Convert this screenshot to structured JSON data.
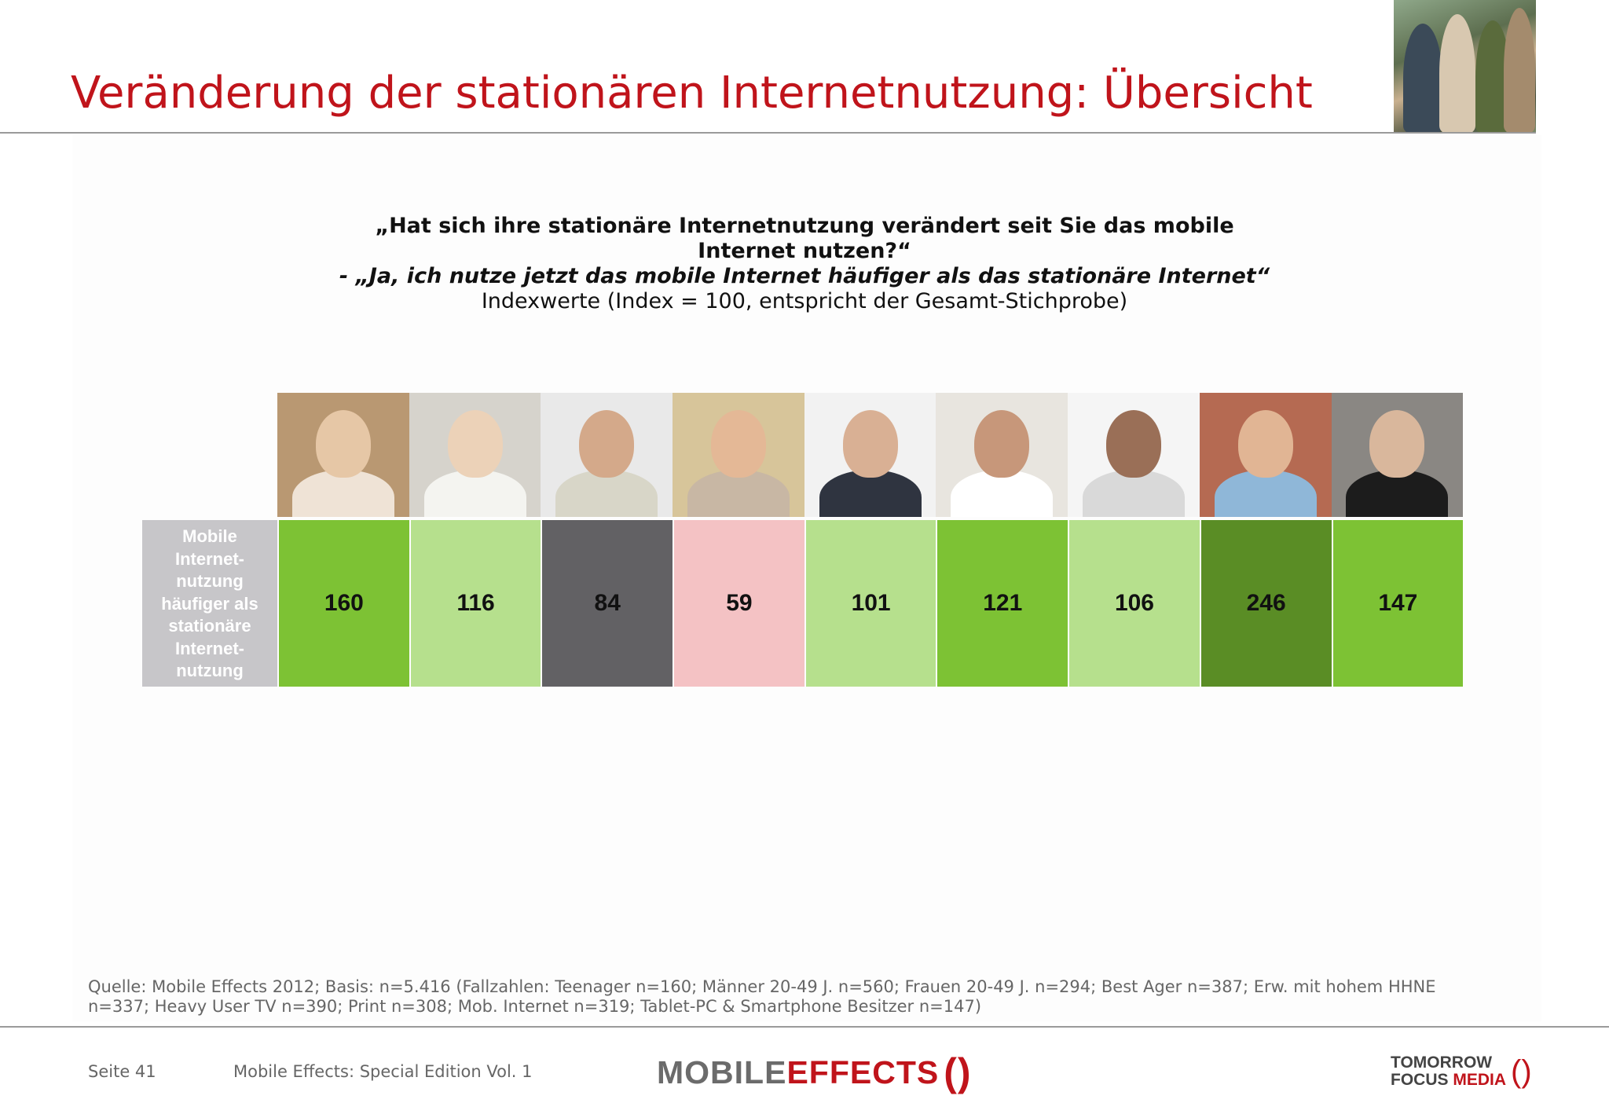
{
  "title": "Veränderung der stationären Internetnutzung: Übersicht",
  "question": {
    "line1": "„Hat sich ihre stationäre Internetnutzung verändert seit Sie das mobile Internet nutzen?“",
    "line2": "- „Ja, ich nutze jetzt das mobile Internet häufiger als das stationäre Internet“",
    "line3": "Indexwerte (Index = 100, entspricht der Gesamt-Stichprobe)"
  },
  "row_label": [
    "Mobile",
    "Internet-",
    "nutzung",
    "häufiger als",
    "stationäre",
    "Internet-",
    "nutzung"
  ],
  "chart_data": {
    "type": "table",
    "row": "Mobile Internet-nutzung häufiger als stationäre Internet-nutzung",
    "values": [
      160,
      116,
      84,
      59,
      101,
      121,
      106,
      246,
      147
    ],
    "cell_colors": [
      "#7dc234",
      "#b6e08d",
      "#626164",
      "#f4c2c4",
      "#b6e08d",
      "#7dc234",
      "#b6e08d",
      "#5a8d25",
      "#7dc234"
    ]
  },
  "cells": [
    {
      "value": "160",
      "color": "#7dc234"
    },
    {
      "value": "116",
      "color": "#b6e08d"
    },
    {
      "value": "84",
      "color": "#626164"
    },
    {
      "value": "59",
      "color": "#f4c2c4"
    },
    {
      "value": "101",
      "color": "#b6e08d"
    },
    {
      "value": "121",
      "color": "#7dc234"
    },
    {
      "value": "106",
      "color": "#b6e08d"
    },
    {
      "value": "246",
      "color": "#5a8d25"
    },
    {
      "value": "147",
      "color": "#7dc234"
    }
  ],
  "photos": [
    {
      "icon": "woman-smartphone-photo",
      "bg": "#b99872",
      "head": "#e6c7a6",
      "body": "#efe3d6"
    },
    {
      "icon": "blonde-woman-phone-photo",
      "bg": "#d6d3cc",
      "head": "#ecd2b8",
      "body": "#f4f4f0"
    },
    {
      "icon": "man-calling-photo",
      "bg": "#e9e9e9",
      "head": "#d4a98a",
      "body": "#d8d6c8"
    },
    {
      "icon": "senior-couple-photo",
      "bg": "#d7c59a",
      "head": "#e4b896",
      "body": "#c8b7a4"
    },
    {
      "icon": "businessman-calling-photo",
      "bg": "#f2f2f2",
      "head": "#d9b094",
      "body": "#2f3440"
    },
    {
      "icon": "teenager-tv-photo",
      "bg": "#e8e5df",
      "head": "#c7977a",
      "body": "#ffffff"
    },
    {
      "icon": "man-newspaper-photo",
      "bg": "#f5f5f5",
      "head": "#9a6f57",
      "body": "#d9d9d9"
    },
    {
      "icon": "man-tablet-photo",
      "bg": "#b56a52",
      "head": "#e1b594",
      "body": "#8fb7d8"
    },
    {
      "icon": "man-black-sweater-photo",
      "bg": "#8a8783",
      "head": "#d9b79c",
      "body": "#1c1c1c"
    }
  ],
  "source": "Quelle: Mobile Effects 2012; Basis: n=5.416 (Fallzahlen: Teenager n=160; Männer 20-49 J. n=560; Frauen 20-49 J. n=294; Best Ager n=387; Erw. mit hohem HHNE n=337; Heavy User TV n=390; Print n=308; Mob. Internet n=319; Tablet-PC & Smartphone Besitzer n=147)",
  "footer": {
    "page": "Seite 41",
    "doc_title": "Mobile Effects: Special Edition Vol. 1",
    "logo_left_a": "MOBILE",
    "logo_left_b": "EFFECTS",
    "logo_right_a": "TOMORROW",
    "logo_right_b": "FOCUS",
    "logo_right_c": "MEDIA"
  },
  "colors": {
    "accent": "#c0141b",
    "label_bg": "#c7c6c9"
  }
}
